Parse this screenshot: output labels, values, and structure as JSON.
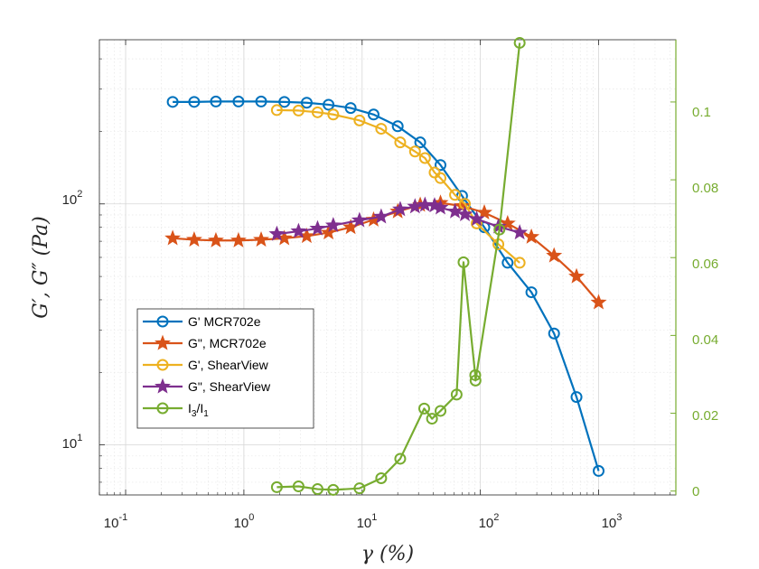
{
  "chart_data": {
    "type": "line",
    "xscale": "log",
    "xlim": [
      0.06,
      4500
    ],
    "xlabel": "γ (%)",
    "x_ticks": [
      {
        "value": 0.1,
        "base": "10",
        "exp": "-1"
      },
      {
        "value": 1,
        "base": "10",
        "exp": "0"
      },
      {
        "value": 10,
        "base": "10",
        "exp": "1"
      },
      {
        "value": 100,
        "base": "10",
        "exp": "2"
      },
      {
        "value": 1000,
        "base": "10",
        "exp": "3"
      }
    ],
    "left_axis": {
      "label": "G′, G″ (Pa)",
      "scale": "log",
      "ylim": [
        6.2,
        480
      ],
      "ticks": [
        {
          "value": 10,
          "base": "10",
          "exp": "1"
        },
        {
          "value": 100,
          "base": "10",
          "exp": "2"
        }
      ]
    },
    "right_axis": {
      "label": "",
      "scale": "linear",
      "ylim": [
        -0.001,
        0.116
      ],
      "ticks": [
        {
          "value": 0,
          "label": "0"
        },
        {
          "value": 0.02,
          "label": "0.02"
        },
        {
          "value": 0.04,
          "label": "0.04"
        },
        {
          "value": 0.06,
          "label": "0.06"
        },
        {
          "value": 0.08,
          "label": "0.08"
        },
        {
          "value": 0.1,
          "label": "0.1"
        }
      ],
      "color": "#77AC30"
    },
    "grid": true,
    "legend_position": "lower-left",
    "series": [
      {
        "name": "G'  MCR702e",
        "axis": "left",
        "color": "#0072BD",
        "marker": "circle",
        "x": [
          0.25,
          0.38,
          0.58,
          0.9,
          1.4,
          2.2,
          3.4,
          5.2,
          8.0,
          12.5,
          20,
          31,
          46,
          70,
          108,
          170,
          270,
          420,
          650,
          1000
        ],
        "y": [
          265,
          265,
          266,
          266,
          266,
          265,
          263,
          258,
          250,
          235,
          210,
          180,
          145,
          108,
          80,
          57,
          43,
          29,
          15.8,
          7.8
        ]
      },
      {
        "name": "G\",  MCR702e",
        "axis": "left",
        "color": "#D95319",
        "marker": "star",
        "x": [
          0.25,
          0.38,
          0.58,
          0.9,
          1.4,
          2.2,
          3.4,
          5.2,
          8.0,
          12.5,
          20,
          31,
          46,
          70,
          108,
          170,
          270,
          420,
          650,
          1000
        ],
        "y": [
          72,
          71,
          70.5,
          70.5,
          71,
          72,
          73.5,
          76,
          80,
          86,
          93,
          99,
          101,
          98,
          92,
          83,
          73,
          61,
          50,
          39
        ]
      },
      {
        "name": "G', ShearView",
        "axis": "left",
        "color": "#EDB120",
        "marker": "circle",
        "x": [
          1.9,
          2.9,
          4.2,
          5.7,
          9.5,
          14.5,
          21,
          28,
          34,
          41,
          46,
          61,
          74,
          93,
          142,
          215
        ],
        "y": [
          245,
          244,
          240,
          235,
          222,
          205,
          180,
          165,
          155,
          135,
          128,
          109,
          100,
          83,
          68,
          57
        ]
      },
      {
        "name": "G\", ShearView",
        "axis": "left",
        "color": "#7E2F8E",
        "marker": "star",
        "x": [
          1.9,
          2.9,
          4.2,
          5.7,
          9.5,
          14.5,
          21,
          28,
          34,
          41,
          46,
          61,
          74,
          93,
          142,
          215
        ],
        "y": [
          75,
          77,
          79,
          81.5,
          85.5,
          88.5,
          95,
          97.5,
          99,
          98.5,
          96.5,
          93,
          90.5,
          86.5,
          80.5,
          76
        ]
      },
      {
        "name": "I₃/I₁",
        "axis": "right",
        "color": "#77AC30",
        "marker": "circle",
        "x": [
          1.9,
          2.9,
          4.2,
          5.7,
          9.5,
          14.5,
          21,
          33.5,
          39,
          46,
          63,
          72,
          90.5,
          91,
          145,
          215
        ],
        "y": [
          0.001,
          0.0012,
          0.0005,
          0.0003,
          0.0007,
          0.0033,
          0.0083,
          0.0212,
          0.0186,
          0.0206,
          0.0248,
          0.0588,
          0.0298,
          0.0284,
          0.0672,
          0.1152
        ]
      }
    ]
  },
  "legend": {
    "g1_label": "G'  MCR702e",
    "g2_label": "G\",  MCR702e",
    "g3_label": "G', ShearView",
    "g4_label": "G\", ShearView",
    "g5_base": "I",
    "g5_sub1": "3",
    "g5_mid": "/I",
    "g5_sub2": "1"
  }
}
